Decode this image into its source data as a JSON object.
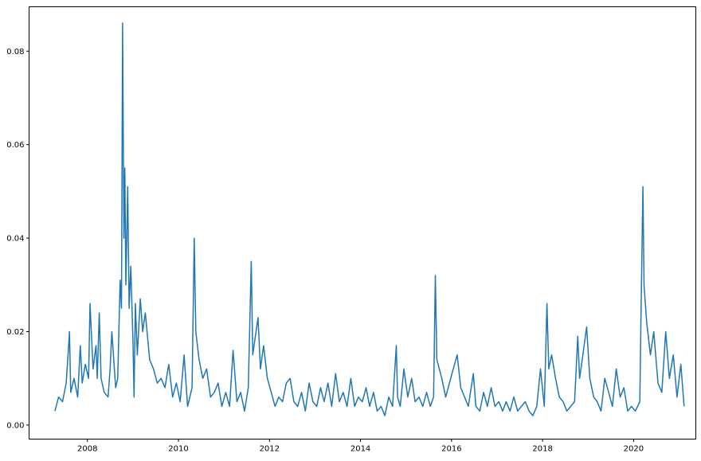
{
  "chart_data": {
    "type": "line",
    "title": "",
    "xlabel": "",
    "ylabel": "",
    "x_ticks": [
      "2008",
      "2010",
      "2012",
      "2014",
      "2016",
      "2018",
      "2020"
    ],
    "y_ticks": [
      "0.00",
      "0.02",
      "0.04",
      "0.06",
      "0.08"
    ],
    "xlim": [
      "2006-09-20",
      "2021-05-15"
    ],
    "ylim": [
      -0.003,
      0.0895
    ],
    "grid": false,
    "line_color": "#1f77b4",
    "points": [
      [
        "2007-04-15",
        0.003
      ],
      [
        "2007-05-15",
        0.006
      ],
      [
        "2007-06-15",
        0.005
      ],
      [
        "2007-07-15",
        0.009
      ],
      [
        "2007-08-01",
        0.016
      ],
      [
        "2007-08-10",
        0.02
      ],
      [
        "2007-08-20",
        0.007
      ],
      [
        "2007-09-15",
        0.01
      ],
      [
        "2007-10-15",
        0.006
      ],
      [
        "2007-11-05",
        0.017
      ],
      [
        "2007-11-20",
        0.009
      ],
      [
        "2007-12-15",
        0.013
      ],
      [
        "2008-01-10",
        0.01
      ],
      [
        "2008-01-22",
        0.026
      ],
      [
        "2008-02-15",
        0.012
      ],
      [
        "2008-03-10",
        0.017
      ],
      [
        "2008-03-20",
        0.01
      ],
      [
        "2008-04-05",
        0.024
      ],
      [
        "2008-04-20",
        0.01
      ],
      [
        "2008-05-15",
        0.007
      ],
      [
        "2008-06-15",
        0.006
      ],
      [
        "2008-07-01",
        0.012
      ],
      [
        "2008-07-15",
        0.02
      ],
      [
        "2008-08-15",
        0.008
      ],
      [
        "2008-09-01",
        0.01
      ],
      [
        "2008-09-20",
        0.031
      ],
      [
        "2008-10-01",
        0.025
      ],
      [
        "2008-10-10",
        0.086
      ],
      [
        "2008-10-20",
        0.04
      ],
      [
        "2008-10-28",
        0.055
      ],
      [
        "2008-11-05",
        0.03
      ],
      [
        "2008-11-20",
        0.051
      ],
      [
        "2008-12-01",
        0.025
      ],
      [
        "2008-12-15",
        0.034
      ],
      [
        "2009-01-01",
        0.018
      ],
      [
        "2009-01-10",
        0.006
      ],
      [
        "2009-01-20",
        0.026
      ],
      [
        "2009-02-05",
        0.015
      ],
      [
        "2009-03-01",
        0.027
      ],
      [
        "2009-03-20",
        0.02
      ],
      [
        "2009-04-10",
        0.024
      ],
      [
        "2009-05-15",
        0.014
      ],
      [
        "2009-06-15",
        0.012
      ],
      [
        "2009-07-15",
        0.009
      ],
      [
        "2009-08-15",
        0.01
      ],
      [
        "2009-09-15",
        0.008
      ],
      [
        "2009-10-15",
        0.013
      ],
      [
        "2009-11-15",
        0.006
      ],
      [
        "2009-12-15",
        0.009
      ],
      [
        "2010-01-15",
        0.005
      ],
      [
        "2010-02-15",
        0.015
      ],
      [
        "2010-03-15",
        0.004
      ],
      [
        "2010-04-20",
        0.008
      ],
      [
        "2010-05-07",
        0.04
      ],
      [
        "2010-05-20",
        0.02
      ],
      [
        "2010-06-15",
        0.014
      ],
      [
        "2010-07-15",
        0.01
      ],
      [
        "2010-08-15",
        0.012
      ],
      [
        "2010-09-15",
        0.006
      ],
      [
        "2010-10-15",
        0.007
      ],
      [
        "2010-11-15",
        0.009
      ],
      [
        "2010-12-15",
        0.004
      ],
      [
        "2011-01-15",
        0.007
      ],
      [
        "2011-02-15",
        0.004
      ],
      [
        "2011-03-15",
        0.016
      ],
      [
        "2011-04-15",
        0.005
      ],
      [
        "2011-05-15",
        0.007
      ],
      [
        "2011-06-15",
        0.003
      ],
      [
        "2011-07-15",
        0.008
      ],
      [
        "2011-08-08",
        0.035
      ],
      [
        "2011-08-20",
        0.015
      ],
      [
        "2011-09-15",
        0.02
      ],
      [
        "2011-10-01",
        0.023
      ],
      [
        "2011-10-20",
        0.012
      ],
      [
        "2011-11-15",
        0.017
      ],
      [
        "2011-12-15",
        0.01
      ],
      [
        "2012-01-15",
        0.007
      ],
      [
        "2012-02-15",
        0.004
      ],
      [
        "2012-03-15",
        0.006
      ],
      [
        "2012-04-15",
        0.005
      ],
      [
        "2012-05-15",
        0.009
      ],
      [
        "2012-06-15",
        0.01
      ],
      [
        "2012-07-15",
        0.005
      ],
      [
        "2012-08-15",
        0.004
      ],
      [
        "2012-09-15",
        0.007
      ],
      [
        "2012-10-15",
        0.003
      ],
      [
        "2012-11-15",
        0.009
      ],
      [
        "2012-12-15",
        0.005
      ],
      [
        "2013-01-15",
        0.004
      ],
      [
        "2013-02-15",
        0.008
      ],
      [
        "2013-03-15",
        0.005
      ],
      [
        "2013-04-15",
        0.009
      ],
      [
        "2013-05-15",
        0.004
      ],
      [
        "2013-06-15",
        0.011
      ],
      [
        "2013-07-15",
        0.005
      ],
      [
        "2013-08-15",
        0.007
      ],
      [
        "2013-09-15",
        0.004
      ],
      [
        "2013-10-15",
        0.01
      ],
      [
        "2013-11-15",
        0.004
      ],
      [
        "2013-12-15",
        0.006
      ],
      [
        "2014-01-15",
        0.005
      ],
      [
        "2014-02-15",
        0.008
      ],
      [
        "2014-03-15",
        0.004
      ],
      [
        "2014-04-15",
        0.007
      ],
      [
        "2014-05-15",
        0.003
      ],
      [
        "2014-06-15",
        0.004
      ],
      [
        "2014-07-15",
        0.002
      ],
      [
        "2014-08-15",
        0.006
      ],
      [
        "2014-09-15",
        0.004
      ],
      [
        "2014-10-15",
        0.017
      ],
      [
        "2014-10-25",
        0.006
      ],
      [
        "2014-11-15",
        0.004
      ],
      [
        "2014-12-15",
        0.012
      ],
      [
        "2015-01-15",
        0.006
      ],
      [
        "2015-02-15",
        0.01
      ],
      [
        "2015-03-15",
        0.005
      ],
      [
        "2015-04-15",
        0.006
      ],
      [
        "2015-05-15",
        0.004
      ],
      [
        "2015-06-15",
        0.007
      ],
      [
        "2015-07-15",
        0.004
      ],
      [
        "2015-08-10",
        0.006
      ],
      [
        "2015-08-24",
        0.032
      ],
      [
        "2015-09-05",
        0.014
      ],
      [
        "2015-10-15",
        0.01
      ],
      [
        "2015-11-15",
        0.006
      ],
      [
        "2015-12-15",
        0.009
      ],
      [
        "2016-01-15",
        0.012
      ],
      [
        "2016-02-15",
        0.015
      ],
      [
        "2016-03-15",
        0.008
      ],
      [
        "2016-04-15",
        0.006
      ],
      [
        "2016-05-15",
        0.004
      ],
      [
        "2016-06-24",
        0.011
      ],
      [
        "2016-07-15",
        0.004
      ],
      [
        "2016-08-15",
        0.003
      ],
      [
        "2016-09-15",
        0.007
      ],
      [
        "2016-10-15",
        0.004
      ],
      [
        "2016-11-15",
        0.008
      ],
      [
        "2016-12-15",
        0.004
      ],
      [
        "2017-01-15",
        0.005
      ],
      [
        "2017-02-15",
        0.003
      ],
      [
        "2017-03-15",
        0.005
      ],
      [
        "2017-04-15",
        0.003
      ],
      [
        "2017-05-15",
        0.006
      ],
      [
        "2017-06-15",
        0.003
      ],
      [
        "2017-07-15",
        0.004
      ],
      [
        "2017-08-15",
        0.005
      ],
      [
        "2017-09-15",
        0.003
      ],
      [
        "2017-10-15",
        0.002
      ],
      [
        "2017-11-15",
        0.004
      ],
      [
        "2017-12-15",
        0.012
      ],
      [
        "2018-01-15",
        0.004
      ],
      [
        "2018-02-05",
        0.026
      ],
      [
        "2018-02-20",
        0.012
      ],
      [
        "2018-03-15",
        0.015
      ],
      [
        "2018-04-15",
        0.01
      ],
      [
        "2018-05-15",
        0.006
      ],
      [
        "2018-06-15",
        0.005
      ],
      [
        "2018-07-15",
        0.003
      ],
      [
        "2018-08-15",
        0.004
      ],
      [
        "2018-09-15",
        0.005
      ],
      [
        "2018-10-10",
        0.019
      ],
      [
        "2018-10-25",
        0.01
      ],
      [
        "2018-11-15",
        0.014
      ],
      [
        "2018-12-20",
        0.021
      ],
      [
        "2019-01-15",
        0.01
      ],
      [
        "2019-02-15",
        0.006
      ],
      [
        "2019-03-15",
        0.005
      ],
      [
        "2019-04-15",
        0.003
      ],
      [
        "2019-05-15",
        0.01
      ],
      [
        "2019-06-15",
        0.007
      ],
      [
        "2019-07-15",
        0.004
      ],
      [
        "2019-08-15",
        0.012
      ],
      [
        "2019-09-15",
        0.006
      ],
      [
        "2019-10-15",
        0.008
      ],
      [
        "2019-11-15",
        0.003
      ],
      [
        "2019-12-15",
        0.004
      ],
      [
        "2020-01-15",
        0.003
      ],
      [
        "2020-02-20",
        0.005
      ],
      [
        "2020-03-01",
        0.025
      ],
      [
        "2020-03-16",
        0.051
      ],
      [
        "2020-03-25",
        0.03
      ],
      [
        "2020-04-15",
        0.022
      ],
      [
        "2020-05-15",
        0.015
      ],
      [
        "2020-06-11",
        0.02
      ],
      [
        "2020-07-15",
        0.009
      ],
      [
        "2020-08-15",
        0.007
      ],
      [
        "2020-09-15",
        0.02
      ],
      [
        "2020-10-15",
        0.01
      ],
      [
        "2020-11-15",
        0.015
      ],
      [
        "2020-12-15",
        0.006
      ],
      [
        "2021-01-15",
        0.013
      ],
      [
        "2021-02-10",
        0.004
      ]
    ]
  }
}
